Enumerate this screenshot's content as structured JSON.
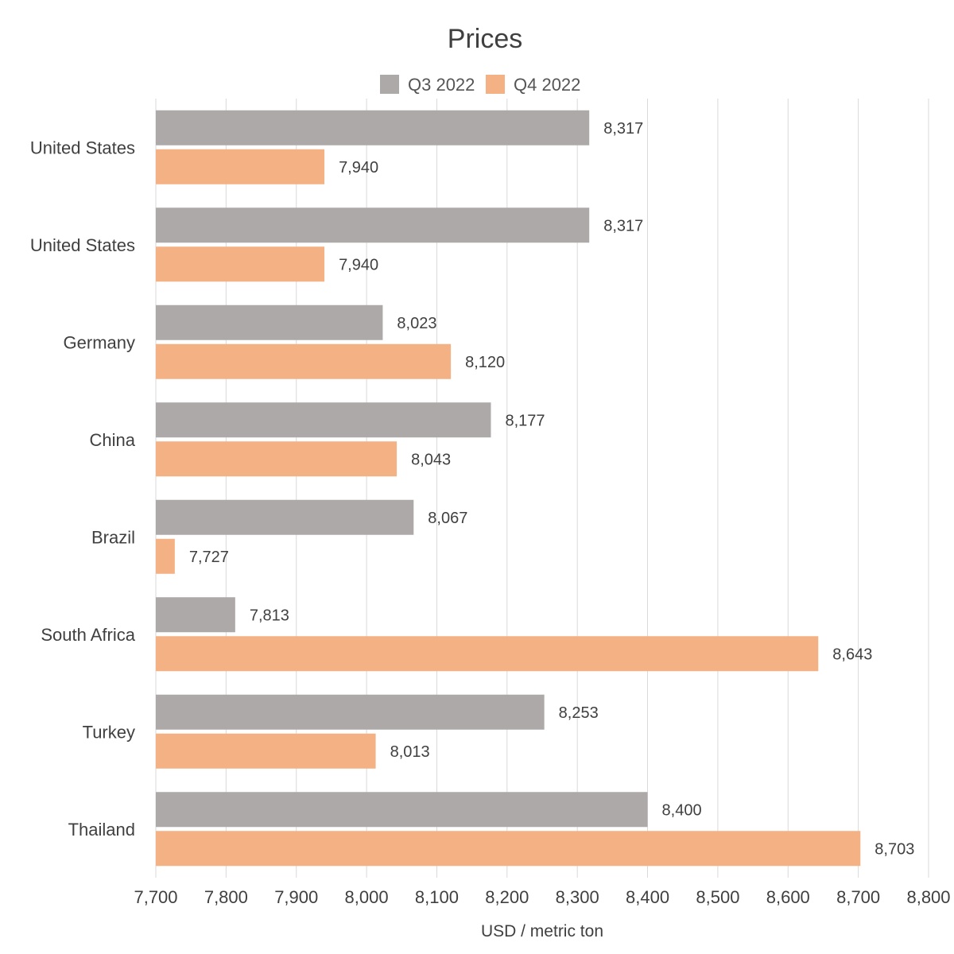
{
  "chart_data": {
    "type": "bar",
    "orientation": "horizontal",
    "title": "Prices",
    "xlabel": "USD / metric ton",
    "ylabel": "",
    "xlim": [
      7700,
      8800
    ],
    "x_ticks": [
      7700,
      7800,
      7900,
      8000,
      8100,
      8200,
      8300,
      8400,
      8500,
      8600,
      8700,
      8800
    ],
    "x_tick_labels": [
      "7,700",
      "7,800",
      "7,900",
      "8,000",
      "8,100",
      "8,200",
      "8,300",
      "8,400",
      "8,500",
      "8,600",
      "8,700",
      "8,800"
    ],
    "grid": true,
    "legend_position": "top",
    "categories": [
      "United States",
      "United States",
      "Germany",
      "China",
      "Brazil",
      "South Africa",
      "Turkey",
      "Thailand"
    ],
    "series": [
      {
        "name": "Q3 2022",
        "color": "#ada9a8",
        "values": [
          8317,
          8317,
          8023,
          8177,
          8067,
          7813,
          8253,
          8400
        ],
        "labels": [
          "8,317",
          "8,317",
          "8,023",
          "8,177",
          "8,067",
          "7,813",
          "8,253",
          "8,400"
        ]
      },
      {
        "name": "Q4 2022",
        "color": "#f4b183",
        "values": [
          7940,
          7940,
          8120,
          8043,
          7727,
          8643,
          8013,
          8703
        ],
        "labels": [
          "7,940",
          "7,940",
          "8,120",
          "8,043",
          "7,727",
          "8,643",
          "8,013",
          "8,703"
        ]
      }
    ]
  }
}
